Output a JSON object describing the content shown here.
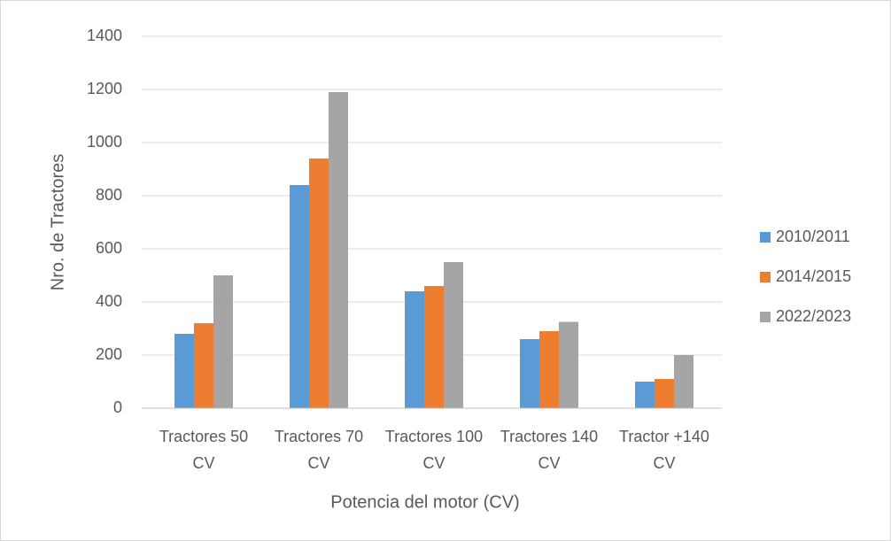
{
  "chart_data": {
    "type": "bar",
    "xlabel": "Potencia del motor (CV)",
    "ylabel": "Nro. de Tractores",
    "categories": [
      "Tractores 50 CV",
      "Tractores 70 CV",
      "Tractores 100 CV",
      "Tractores 140 CV",
      "Tractor +140 CV"
    ],
    "series": [
      {
        "name": "2010/2011",
        "color": "#5b9bd5",
        "values": [
          280,
          840,
          440,
          260,
          100
        ]
      },
      {
        "name": "2014/2015",
        "color": "#ed7d31",
        "values": [
          320,
          940,
          460,
          290,
          110
        ]
      },
      {
        "name": "2022/2023",
        "color": "#a5a5a5",
        "values": [
          500,
          1190,
          550,
          325,
          200
        ]
      }
    ],
    "ylim": [
      0,
      1400
    ],
    "yticks": [
      0,
      200,
      400,
      600,
      800,
      1000,
      1200,
      1400
    ],
    "grid": true,
    "legend": "right"
  }
}
